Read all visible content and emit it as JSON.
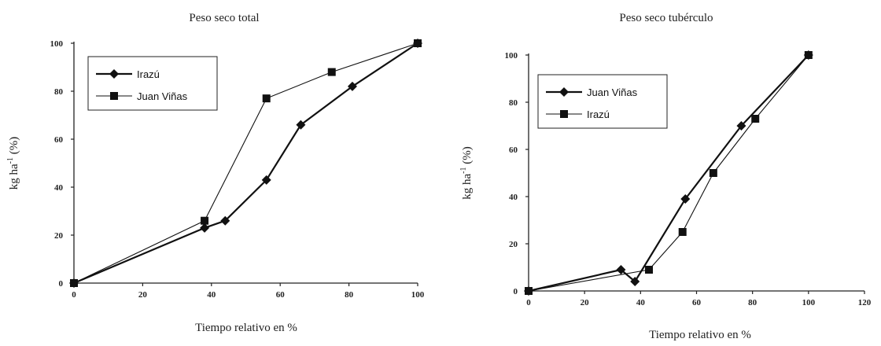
{
  "chart_data": [
    {
      "type": "line",
      "title": "Peso seco total",
      "xlabel": "Tiempo relativo en %",
      "ylabel": "kg ha",
      "ylabel_sup": "-1",
      "ylabel_suffix": " (%)",
      "xlim": [
        0,
        100
      ],
      "ylim": [
        0,
        100
      ],
      "xticks": [
        "0",
        "20",
        "40",
        "60",
        "80",
        "100"
      ],
      "yticks": [
        "0",
        "20",
        "40",
        "60",
        "80",
        "100"
      ],
      "legend": "upper-left",
      "series": [
        {
          "name": "Irazú",
          "marker": "diamond",
          "stroke_width": 2.2,
          "points": [
            [
              0,
              0
            ],
            [
              38,
              23
            ],
            [
              44,
              26
            ],
            [
              56,
              43
            ],
            [
              66,
              66
            ],
            [
              81,
              82
            ],
            [
              100,
              100
            ]
          ]
        },
        {
          "name": "Juan Viñas",
          "marker": "square",
          "stroke_width": 1.1,
          "points": [
            [
              0,
              0
            ],
            [
              38,
              26
            ],
            [
              56,
              77
            ],
            [
              75,
              88
            ],
            [
              100,
              100
            ]
          ]
        }
      ]
    },
    {
      "type": "line",
      "title": "Peso seco tubérculo",
      "xlabel": "Tiempo relativo en %",
      "ylabel": "kg ha",
      "ylabel_sup": "-1",
      "ylabel_suffix": " (%)",
      "xlim": [
        0,
        120
      ],
      "ylim": [
        0,
        100
      ],
      "xticks": [
        "0",
        "20",
        "40",
        "60",
        "80",
        "100",
        "120"
      ],
      "yticks": [
        "0",
        "20",
        "40",
        "60",
        "80",
        "100"
      ],
      "legend": "upper-left",
      "series": [
        {
          "name": "Juan Viñas",
          "marker": "diamond",
          "stroke_width": 2.2,
          "points": [
            [
              0,
              0
            ],
            [
              33,
              9
            ],
            [
              38,
              4
            ],
            [
              56,
              39
            ],
            [
              76,
              70
            ],
            [
              100,
              100
            ]
          ]
        },
        {
          "name": "Irazú",
          "marker": "square",
          "stroke_width": 1.1,
          "points": [
            [
              0,
              0
            ],
            [
              43,
              9
            ],
            [
              55,
              25
            ],
            [
              66,
              50
            ],
            [
              81,
              73
            ],
            [
              100,
              100
            ]
          ]
        }
      ]
    }
  ]
}
